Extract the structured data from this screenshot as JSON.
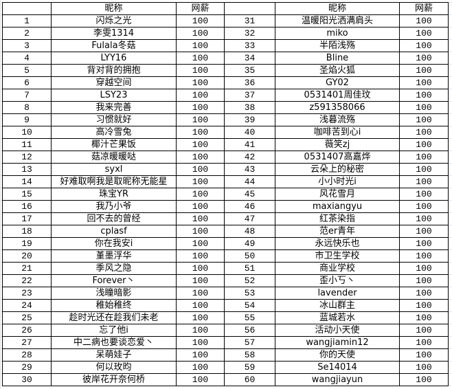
{
  "headers": {
    "name": "昵称",
    "salary": "网薪"
  },
  "rows": [
    {
      "no": "1",
      "name": "闪烁之光",
      "salary": "100"
    },
    {
      "no": "2",
      "name": "李雯1314",
      "salary": "100"
    },
    {
      "no": "3",
      "name": "Fulala冬菇",
      "salary": "100"
    },
    {
      "no": "4",
      "name": "LYY16",
      "salary": "100"
    },
    {
      "no": "5",
      "name": "背对背的拥抱",
      "salary": "100"
    },
    {
      "no": "6",
      "name": "穿越空间",
      "salary": "100"
    },
    {
      "no": "7",
      "name": "LSY23",
      "salary": "100"
    },
    {
      "no": "8",
      "name": "我来完善",
      "salary": "100"
    },
    {
      "no": "9",
      "name": "习惯就好",
      "salary": "100"
    },
    {
      "no": "10",
      "name": "高冷雪兔",
      "salary": "100"
    },
    {
      "no": "11",
      "name": "椰汁芒果饭",
      "salary": "100"
    },
    {
      "no": "12",
      "name": "菇凉暖暖哒",
      "salary": "100"
    },
    {
      "no": "13",
      "name": "syxl",
      "salary": "100"
    },
    {
      "no": "14",
      "name": "好难取啊我是取昵称无能星",
      "salary": "100"
    },
    {
      "no": "15",
      "name": "珠宝YR",
      "salary": "100"
    },
    {
      "no": "16",
      "name": "我乃小爷",
      "salary": "100"
    },
    {
      "no": "17",
      "name": "回不去的曾经",
      "salary": "100"
    },
    {
      "no": "18",
      "name": "cplasf",
      "salary": "100"
    },
    {
      "no": "19",
      "name": "你在我安i",
      "salary": "100"
    },
    {
      "no": "20",
      "name": "堇墨浮华",
      "salary": "100"
    },
    {
      "no": "21",
      "name": "季风之隐",
      "salary": "100"
    },
    {
      "no": "22",
      "name": "Forever丶",
      "salary": "100"
    },
    {
      "no": "23",
      "name": "浅瞳暗影",
      "salary": "100"
    },
    {
      "no": "24",
      "name": "稚始稚终",
      "salary": "100"
    },
    {
      "no": "25",
      "name": "趁时光还在趁我们未老",
      "salary": "100"
    },
    {
      "no": "26",
      "name": "忘了他i",
      "salary": "100"
    },
    {
      "no": "27",
      "name": "中二病也要谈恋爱丶",
      "salary": "100"
    },
    {
      "no": "28",
      "name": "呆萌娃子",
      "salary": "100"
    },
    {
      "no": "29",
      "name": "何以玫昀",
      "salary": "100"
    },
    {
      "no": "30",
      "name": "彼岸花开奈何桥",
      "salary": "100"
    },
    {
      "no": "31",
      "name": "温暖阳光洒满肩头",
      "salary": "100"
    },
    {
      "no": "32",
      "name": "miko",
      "salary": "100"
    },
    {
      "no": "33",
      "name": "半陌浅殇",
      "salary": "100"
    },
    {
      "no": "34",
      "name": "Bline",
      "salary": "100"
    },
    {
      "no": "35",
      "name": "圣焰火狐",
      "salary": "100"
    },
    {
      "no": "36",
      "name": "GY02",
      "salary": "100"
    },
    {
      "no": "37",
      "name": "0531401周佳玟",
      "salary": "100"
    },
    {
      "no": "38",
      "name": "z591358066",
      "salary": "100"
    },
    {
      "no": "39",
      "name": "浅暮流殇",
      "salary": "100"
    },
    {
      "no": "40",
      "name": "咖啡苦到心i",
      "salary": "100"
    },
    {
      "no": "41",
      "name": "薇笑zj",
      "salary": "100"
    },
    {
      "no": "42",
      "name": "0531407高嘉烨",
      "salary": "100"
    },
    {
      "no": "43",
      "name": "云朵上的秘密",
      "salary": "100"
    },
    {
      "no": "44",
      "name": "小小时光i",
      "salary": "100"
    },
    {
      "no": "45",
      "name": "风花雪月",
      "salary": "100"
    },
    {
      "no": "46",
      "name": "maxiangyu",
      "salary": "100"
    },
    {
      "no": "47",
      "name": "红茶染指",
      "salary": "100"
    },
    {
      "no": "48",
      "name": "范er青年",
      "salary": "100"
    },
    {
      "no": "49",
      "name": "永远快乐也",
      "salary": "100"
    },
    {
      "no": "50",
      "name": "市卫生学校",
      "salary": "100"
    },
    {
      "no": "51",
      "name": "商业学校",
      "salary": "100"
    },
    {
      "no": "52",
      "name": "歪小丂丶",
      "salary": "100"
    },
    {
      "no": "53",
      "name": "lavender",
      "salary": "100"
    },
    {
      "no": "54",
      "name": "冰山群主",
      "salary": "100"
    },
    {
      "no": "55",
      "name": "蓝城若水",
      "salary": "100"
    },
    {
      "no": "56",
      "name": "活动小天使",
      "salary": "100"
    },
    {
      "no": "57",
      "name": "wangjiamin12",
      "salary": "100"
    },
    {
      "no": "58",
      "name": "你的天使",
      "salary": "100"
    },
    {
      "no": "59",
      "name": "Se14014",
      "salary": "100"
    },
    {
      "no": "60",
      "name": "wangjiayun",
      "salary": "100"
    }
  ]
}
